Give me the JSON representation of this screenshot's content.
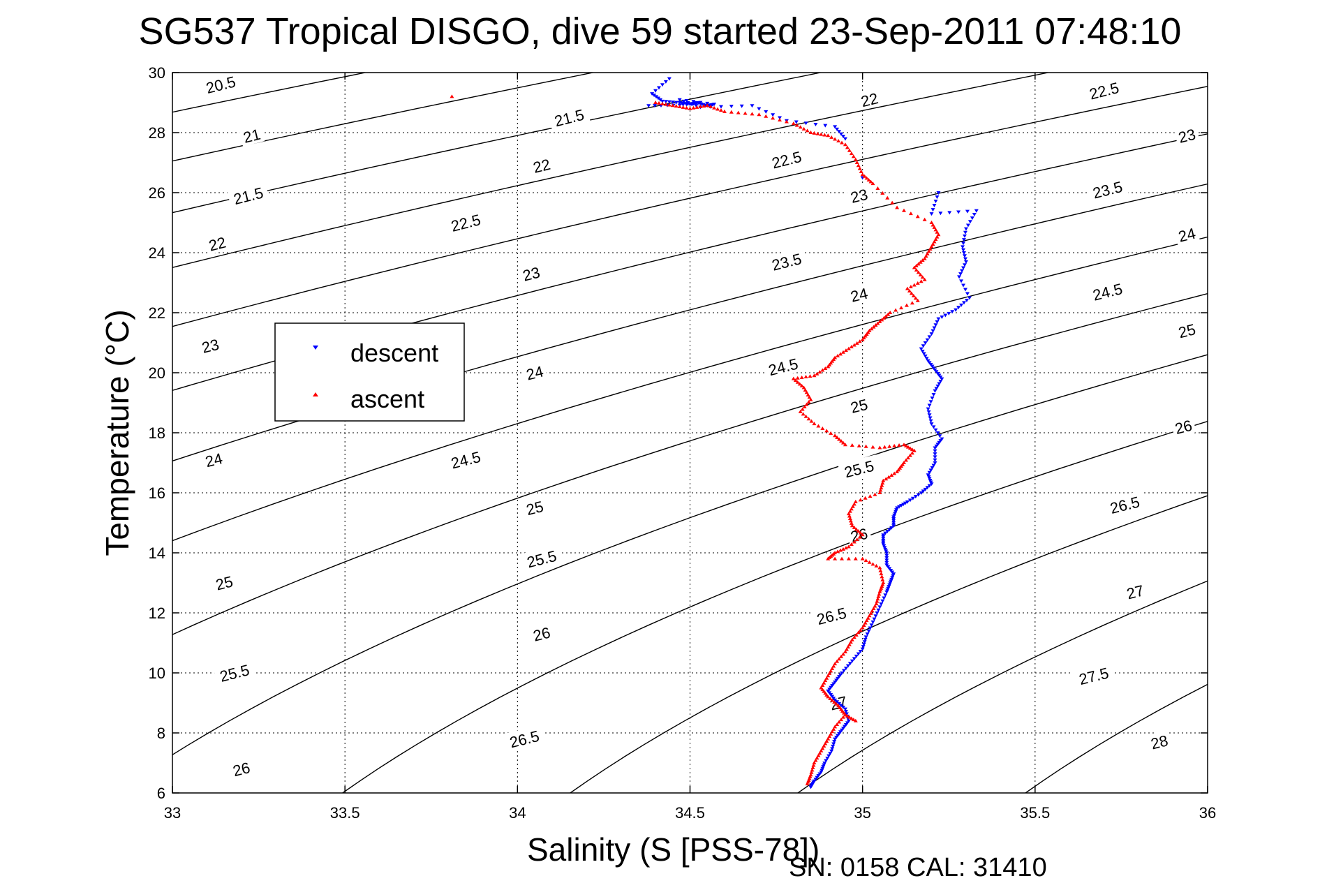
{
  "chart_data": {
    "type": "scatter",
    "title": "SG537 Tropical DISGO, dive 59 started 23-Sep-2011 07:48:10",
    "xlabel": "Salinity (S [PSS-78])",
    "ylabel": "Temperature (°C)",
    "xlim": [
      33,
      36
    ],
    "ylim": [
      6,
      30
    ],
    "x_ticks": [
      "33",
      "33.5",
      "34",
      "34.5",
      "35",
      "35.5",
      "36"
    ],
    "y_ticks": [
      "6",
      "8",
      "10",
      "12",
      "14",
      "16",
      "18",
      "20",
      "22",
      "24",
      "26",
      "28",
      "30"
    ],
    "grid": true,
    "legend_position": "left-middle",
    "annotation": "SN: 0158  CAL: 31410",
    "density_contours": {
      "description": "sigma-t isopycnals",
      "levels": [
        20.5,
        21,
        21.5,
        22,
        22.5,
        23,
        23.5,
        24,
        24.5,
        25,
        25.5,
        26,
        26.5,
        27,
        27.5,
        28
      ],
      "labels": [
        {
          "text": "20.5",
          "s": 33.14,
          "t": 29.6
        },
        {
          "text": "21",
          "s": 33.23,
          "t": 27.9
        },
        {
          "text": "21.5",
          "s": 33.22,
          "t": 25.9
        },
        {
          "text": "22",
          "s": 33.13,
          "t": 24.3
        },
        {
          "text": "23",
          "s": 33.11,
          "t": 20.9
        },
        {
          "text": "24",
          "s": 33.12,
          "t": 17.1
        },
        {
          "text": "25",
          "s": 33.15,
          "t": 13.0
        },
        {
          "text": "25.5",
          "s": 33.18,
          "t": 10.0
        },
        {
          "text": "26",
          "s": 33.2,
          "t": 6.8
        },
        {
          "text": "21.5",
          "s": 34.15,
          "t": 28.5
        },
        {
          "text": "22",
          "s": 34.07,
          "t": 26.9
        },
        {
          "text": "22.5",
          "s": 33.85,
          "t": 25.0
        },
        {
          "text": "23",
          "s": 34.04,
          "t": 23.3
        },
        {
          "text": "24",
          "s": 34.05,
          "t": 20.0
        },
        {
          "text": "24.5",
          "s": 33.85,
          "t": 17.1
        },
        {
          "text": "25",
          "s": 34.05,
          "t": 15.5
        },
        {
          "text": "25.5",
          "s": 34.07,
          "t": 13.8
        },
        {
          "text": "26",
          "s": 34.07,
          "t": 11.3
        },
        {
          "text": "26.5",
          "s": 34.02,
          "t": 7.8
        },
        {
          "text": "22",
          "s": 35.02,
          "t": 29.1
        },
        {
          "text": "22.5",
          "s": 34.78,
          "t": 27.1
        },
        {
          "text": "23",
          "s": 34.99,
          "t": 25.9
        },
        {
          "text": "23.5",
          "s": 34.78,
          "t": 23.7
        },
        {
          "text": "24",
          "s": 34.99,
          "t": 22.6
        },
        {
          "text": "24.5",
          "s": 34.77,
          "t": 20.2
        },
        {
          "text": "25",
          "s": 34.99,
          "t": 18.9
        },
        {
          "text": "25.5",
          "s": 34.99,
          "t": 16.8
        },
        {
          "text": "26",
          "s": 34.99,
          "t": 14.6
        },
        {
          "text": "26.5",
          "s": 34.91,
          "t": 11.9
        },
        {
          "text": "27",
          "s": 34.93,
          "t": 9.0
        },
        {
          "text": "22.5",
          "s": 35.7,
          "t": 29.4
        },
        {
          "text": "23",
          "s": 35.94,
          "t": 27.9
        },
        {
          "text": "23.5",
          "s": 35.71,
          "t": 26.1
        },
        {
          "text": "24",
          "s": 35.94,
          "t": 24.6
        },
        {
          "text": "24.5",
          "s": 35.71,
          "t": 22.7
        },
        {
          "text": "25",
          "s": 35.94,
          "t": 21.4
        },
        {
          "text": "26",
          "s": 35.93,
          "t": 18.2
        },
        {
          "text": "26.5",
          "s": 35.76,
          "t": 15.6
        },
        {
          "text": "27",
          "s": 35.79,
          "t": 12.7
        },
        {
          "text": "27.5",
          "s": 35.67,
          "t": 9.9
        },
        {
          "text": "28",
          "s": 35.86,
          "t": 7.7
        }
      ]
    },
    "series": [
      {
        "name": "descent",
        "color": "#0000ff",
        "marker": "triangle-down",
        "points": [
          [
            34.44,
            29.8
          ],
          [
            34.39,
            29.3
          ],
          [
            34.42,
            29.05
          ],
          [
            34.47,
            29.0
          ],
          [
            34.5,
            28.95
          ],
          [
            34.52,
            29.0
          ],
          [
            34.55,
            28.9
          ],
          [
            34.57,
            28.95
          ],
          [
            34.47,
            29.1
          ],
          [
            34.53,
            28.85
          ],
          [
            34.68,
            28.9
          ],
          [
            34.78,
            28.4
          ],
          [
            34.92,
            28.2
          ],
          [
            34.95,
            27.8
          ],
          [
            35.0,
            26.5
          ],
          [
            35.22,
            26.0
          ],
          [
            35.2,
            25.3
          ],
          [
            35.33,
            25.4
          ],
          [
            35.3,
            24.8
          ],
          [
            35.29,
            24.2
          ],
          [
            35.3,
            23.7
          ],
          [
            35.28,
            23.2
          ],
          [
            35.31,
            22.5
          ],
          [
            35.27,
            22.1
          ],
          [
            35.22,
            21.8
          ],
          [
            35.2,
            21.3
          ],
          [
            35.17,
            20.8
          ],
          [
            35.19,
            20.4
          ],
          [
            35.21,
            20.1
          ],
          [
            35.23,
            19.8
          ],
          [
            35.21,
            19.4
          ],
          [
            35.19,
            18.8
          ],
          [
            35.2,
            18.3
          ],
          [
            35.23,
            17.8
          ],
          [
            35.21,
            17.5
          ],
          [
            35.21,
            17.0
          ],
          [
            35.19,
            16.6
          ],
          [
            35.2,
            16.3
          ],
          [
            35.17,
            16.0
          ],
          [
            35.13,
            15.7
          ],
          [
            35.1,
            15.5
          ],
          [
            35.09,
            15.2
          ],
          [
            35.09,
            14.9
          ],
          [
            35.06,
            14.6
          ],
          [
            35.06,
            14.3
          ],
          [
            35.07,
            14.0
          ],
          [
            35.07,
            13.6
          ],
          [
            35.09,
            13.3
          ],
          [
            35.08,
            13.0
          ],
          [
            35.07,
            12.7
          ],
          [
            35.05,
            12.2
          ],
          [
            35.03,
            11.7
          ],
          [
            35.01,
            11.2
          ],
          [
            35.0,
            10.8
          ],
          [
            34.97,
            10.4
          ],
          [
            34.94,
            10.0
          ],
          [
            34.92,
            9.7
          ],
          [
            34.9,
            9.4
          ],
          [
            34.92,
            9.1
          ],
          [
            34.95,
            8.8
          ],
          [
            34.96,
            8.4
          ],
          [
            34.94,
            8.1
          ],
          [
            34.92,
            7.8
          ],
          [
            34.91,
            7.4
          ],
          [
            34.89,
            7.0
          ],
          [
            34.88,
            6.7
          ],
          [
            34.86,
            6.4
          ],
          [
            34.85,
            6.2
          ],
          [
            34.38,
            28.9
          ],
          [
            34.47,
            28.92
          ],
          [
            34.52,
            28.98
          ]
        ]
      },
      {
        "name": "ascent",
        "color": "#ff0000",
        "marker": "triangle-up",
        "points": [
          [
            33.81,
            29.2
          ],
          [
            34.4,
            29.0
          ],
          [
            34.45,
            28.9
          ],
          [
            34.5,
            28.8
          ],
          [
            34.55,
            28.9
          ],
          [
            34.6,
            28.7
          ],
          [
            34.7,
            28.6
          ],
          [
            34.8,
            28.3
          ],
          [
            34.85,
            28.0
          ],
          [
            34.9,
            27.9
          ],
          [
            34.95,
            27.6
          ],
          [
            34.98,
            27.1
          ],
          [
            35.0,
            26.6
          ],
          [
            35.03,
            26.3
          ],
          [
            35.1,
            25.5
          ],
          [
            35.2,
            25.0
          ],
          [
            35.22,
            24.6
          ],
          [
            35.2,
            24.2
          ],
          [
            35.18,
            23.8
          ],
          [
            35.15,
            23.5
          ],
          [
            35.18,
            23.1
          ],
          [
            35.13,
            22.8
          ],
          [
            35.16,
            22.4
          ],
          [
            35.08,
            22.0
          ],
          [
            35.05,
            21.7
          ],
          [
            35.02,
            21.4
          ],
          [
            35.0,
            21.1
          ],
          [
            34.96,
            20.8
          ],
          [
            34.92,
            20.5
          ],
          [
            34.9,
            20.2
          ],
          [
            34.86,
            19.9
          ],
          [
            34.8,
            19.8
          ],
          [
            34.83,
            19.5
          ],
          [
            34.85,
            19.1
          ],
          [
            34.82,
            18.7
          ],
          [
            34.86,
            18.3
          ],
          [
            34.92,
            17.9
          ],
          [
            34.95,
            17.6
          ],
          [
            35.05,
            17.5
          ],
          [
            35.12,
            17.6
          ],
          [
            35.15,
            17.4
          ],
          [
            35.12,
            17.0
          ],
          [
            35.1,
            16.7
          ],
          [
            35.06,
            16.4
          ],
          [
            35.05,
            16.0
          ],
          [
            34.98,
            15.7
          ],
          [
            34.96,
            15.3
          ],
          [
            34.97,
            14.9
          ],
          [
            35.0,
            14.6
          ],
          [
            34.96,
            14.2
          ],
          [
            34.92,
            14.0
          ],
          [
            34.9,
            13.8
          ],
          [
            35.0,
            13.8
          ],
          [
            35.05,
            13.5
          ],
          [
            35.06,
            13.0
          ],
          [
            35.05,
            12.7
          ],
          [
            35.04,
            12.3
          ],
          [
            35.02,
            11.9
          ],
          [
            35.0,
            11.5
          ],
          [
            34.97,
            11.1
          ],
          [
            34.95,
            10.7
          ],
          [
            34.92,
            10.3
          ],
          [
            34.9,
            9.9
          ],
          [
            34.88,
            9.5
          ],
          [
            34.9,
            9.2
          ],
          [
            34.93,
            8.9
          ],
          [
            34.95,
            8.6
          ],
          [
            34.92,
            8.2
          ],
          [
            34.9,
            7.8
          ],
          [
            34.88,
            7.4
          ],
          [
            34.86,
            7.0
          ],
          [
            34.85,
            6.6
          ],
          [
            34.84,
            6.3
          ],
          [
            34.95,
            8.6
          ],
          [
            34.98,
            8.4
          ]
        ]
      }
    ]
  }
}
